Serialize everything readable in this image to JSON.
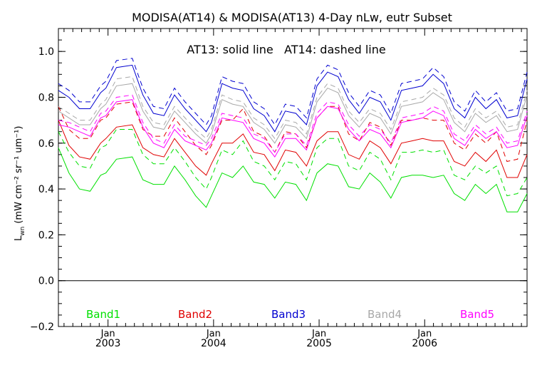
{
  "chart_data": {
    "type": "line",
    "title": "MODISA(AT14) & MODISA(AT13) 4-Day nLw, eutr Subset",
    "annotation": "AT13: solid line   AT14: dashed line",
    "ylabel_main": "L",
    "ylabel_sub": "wn",
    "ylabel_units": "(mW cm⁻² sr⁻¹ um⁻¹)",
    "ylim": [
      -0.2,
      1.1
    ],
    "xlim": [
      2002.53,
      2006.97
    ],
    "yticks": [
      "−0.2",
      "0.0",
      "0.2",
      "0.4",
      "0.6",
      "0.8",
      "1.0"
    ],
    "yticks_values": [
      -0.2,
      0.0,
      0.2,
      0.4,
      0.6,
      0.8,
      1.0
    ],
    "xticks_top": [
      "Jan",
      "Jan",
      "Jan",
      "Jan"
    ],
    "xticks_bottom": [
      "2003",
      "2004",
      "2005",
      "2006"
    ],
    "xticks_values": [
      2003.0,
      2004.0,
      2005.0,
      2006.0
    ],
    "zero_line": true,
    "grid": false,
    "legend_placement": "bottom",
    "x": [
      2002.53,
      2002.63,
      2002.73,
      2002.83,
      2002.93,
      2002.98,
      2003.08,
      2003.23,
      2003.33,
      2003.43,
      2003.53,
      2003.63,
      2003.73,
      2003.83,
      2003.93,
      2003.98,
      2004.08,
      2004.18,
      2004.28,
      2004.38,
      2004.48,
      2004.58,
      2004.68,
      2004.78,
      2004.88,
      2004.98,
      2005.08,
      2005.18,
      2005.28,
      2005.38,
      2005.48,
      2005.58,
      2005.68,
      2005.78,
      2005.88,
      2005.98,
      2006.08,
      2006.18,
      2006.28,
      2006.38,
      2006.48,
      2006.58,
      2006.68,
      2006.78,
      2006.88,
      2006.97
    ],
    "series": [
      {
        "name": "Band1",
        "color": "#00e000",
        "dash": false,
        "values": [
          0.58,
          0.47,
          0.4,
          0.39,
          0.46,
          0.47,
          0.53,
          0.54,
          0.44,
          0.42,
          0.42,
          0.5,
          0.44,
          0.37,
          0.32,
          0.37,
          0.47,
          0.45,
          0.5,
          0.43,
          0.42,
          0.36,
          0.43,
          0.42,
          0.35,
          0.47,
          0.51,
          0.5,
          0.41,
          0.4,
          0.47,
          0.43,
          0.36,
          0.45,
          0.46,
          0.46,
          0.45,
          0.46,
          0.38,
          0.35,
          0.42,
          0.38,
          0.42,
          0.3,
          0.3,
          0.38
        ]
      },
      {
        "name": "Band1 AT14",
        "color": "#00e000",
        "dash": true,
        "values": [
          0.65,
          0.56,
          0.5,
          0.49,
          0.58,
          0.59,
          0.66,
          0.66,
          0.55,
          0.51,
          0.51,
          0.58,
          0.52,
          0.45,
          0.4,
          0.45,
          0.57,
          0.55,
          0.61,
          0.52,
          0.5,
          0.44,
          0.52,
          0.51,
          0.44,
          0.58,
          0.62,
          0.62,
          0.5,
          0.48,
          0.56,
          0.53,
          0.44,
          0.56,
          0.56,
          0.57,
          0.56,
          0.57,
          0.46,
          0.44,
          0.5,
          0.47,
          0.5,
          0.37,
          0.38,
          0.45
        ]
      },
      {
        "name": "Band2",
        "color": "#e00000",
        "dash": false,
        "values": [
          0.7,
          0.59,
          0.54,
          0.53,
          0.6,
          0.62,
          0.67,
          0.68,
          0.58,
          0.55,
          0.54,
          0.62,
          0.56,
          0.5,
          0.46,
          0.51,
          0.6,
          0.6,
          0.64,
          0.56,
          0.55,
          0.48,
          0.57,
          0.56,
          0.5,
          0.61,
          0.65,
          0.65,
          0.55,
          0.53,
          0.61,
          0.58,
          0.51,
          0.6,
          0.61,
          0.62,
          0.61,
          0.61,
          0.52,
          0.5,
          0.56,
          0.52,
          0.57,
          0.45,
          0.45,
          0.55
        ]
      },
      {
        "name": "Band2 AT14",
        "color": "#e00000",
        "dash": true,
        "values": [
          0.76,
          0.66,
          0.62,
          0.62,
          0.7,
          0.71,
          0.77,
          0.78,
          0.66,
          0.63,
          0.63,
          0.71,
          0.65,
          0.59,
          0.55,
          0.59,
          0.7,
          0.7,
          0.75,
          0.65,
          0.63,
          0.56,
          0.65,
          0.64,
          0.58,
          0.71,
          0.76,
          0.76,
          0.64,
          0.61,
          0.69,
          0.67,
          0.59,
          0.7,
          0.7,
          0.71,
          0.7,
          0.7,
          0.6,
          0.57,
          0.64,
          0.6,
          0.65,
          0.52,
          0.53,
          0.7
        ]
      },
      {
        "name": "Band3",
        "color": "#0000d0",
        "dash": false,
        "values": [
          0.83,
          0.8,
          0.75,
          0.75,
          0.82,
          0.84,
          0.93,
          0.94,
          0.81,
          0.73,
          0.72,
          0.81,
          0.75,
          0.7,
          0.65,
          0.69,
          0.86,
          0.84,
          0.83,
          0.75,
          0.72,
          0.65,
          0.74,
          0.73,
          0.68,
          0.85,
          0.91,
          0.89,
          0.79,
          0.73,
          0.8,
          0.78,
          0.7,
          0.83,
          0.84,
          0.85,
          0.9,
          0.86,
          0.75,
          0.71,
          0.8,
          0.75,
          0.79,
          0.71,
          0.72,
          0.88
        ]
      },
      {
        "name": "Band3 AT14",
        "color": "#0000d0",
        "dash": true,
        "values": [
          0.86,
          0.83,
          0.78,
          0.78,
          0.85,
          0.87,
          0.96,
          0.97,
          0.84,
          0.76,
          0.75,
          0.84,
          0.78,
          0.73,
          0.68,
          0.72,
          0.89,
          0.87,
          0.86,
          0.78,
          0.75,
          0.68,
          0.77,
          0.76,
          0.71,
          0.88,
          0.94,
          0.92,
          0.82,
          0.76,
          0.83,
          0.81,
          0.73,
          0.86,
          0.87,
          0.88,
          0.93,
          0.89,
          0.78,
          0.74,
          0.83,
          0.78,
          0.82,
          0.74,
          0.75,
          0.91
        ]
      },
      {
        "name": "Band4",
        "color": "#a8a8a8",
        "dash": false,
        "values": [
          0.74,
          0.71,
          0.68,
          0.68,
          0.75,
          0.77,
          0.85,
          0.86,
          0.74,
          0.67,
          0.66,
          0.74,
          0.69,
          0.64,
          0.6,
          0.64,
          0.79,
          0.77,
          0.76,
          0.69,
          0.66,
          0.6,
          0.68,
          0.67,
          0.62,
          0.78,
          0.84,
          0.82,
          0.72,
          0.67,
          0.73,
          0.71,
          0.64,
          0.76,
          0.77,
          0.78,
          0.82,
          0.79,
          0.69,
          0.65,
          0.73,
          0.69,
          0.72,
          0.65,
          0.66,
          0.81
        ]
      },
      {
        "name": "Band4 AT14",
        "color": "#a8a8a8",
        "dash": true,
        "values": [
          0.76,
          0.73,
          0.7,
          0.7,
          0.77,
          0.79,
          0.88,
          0.89,
          0.76,
          0.69,
          0.68,
          0.76,
          0.71,
          0.66,
          0.62,
          0.66,
          0.81,
          0.79,
          0.78,
          0.71,
          0.68,
          0.62,
          0.7,
          0.69,
          0.64,
          0.8,
          0.86,
          0.84,
          0.74,
          0.69,
          0.75,
          0.73,
          0.66,
          0.78,
          0.79,
          0.8,
          0.84,
          0.81,
          0.71,
          0.67,
          0.75,
          0.71,
          0.74,
          0.67,
          0.68,
          0.83
        ]
      },
      {
        "name": "Band5",
        "color": "#ff00ff",
        "dash": false,
        "values": [
          0.68,
          0.67,
          0.65,
          0.63,
          0.71,
          0.72,
          0.78,
          0.79,
          0.67,
          0.6,
          0.58,
          0.66,
          0.61,
          0.59,
          0.57,
          0.6,
          0.71,
          0.7,
          0.69,
          0.62,
          0.6,
          0.54,
          0.62,
          0.62,
          0.57,
          0.71,
          0.76,
          0.75,
          0.66,
          0.61,
          0.66,
          0.64,
          0.58,
          0.69,
          0.7,
          0.71,
          0.74,
          0.72,
          0.62,
          0.59,
          0.66,
          0.62,
          0.65,
          0.58,
          0.59,
          0.72
        ]
      },
      {
        "name": "Band5 AT14",
        "color": "#ff00ff",
        "dash": true,
        "values": [
          0.7,
          0.69,
          0.67,
          0.65,
          0.73,
          0.74,
          0.8,
          0.81,
          0.69,
          0.62,
          0.6,
          0.68,
          0.63,
          0.61,
          0.59,
          0.62,
          0.73,
          0.72,
          0.71,
          0.64,
          0.62,
          0.56,
          0.64,
          0.64,
          0.59,
          0.73,
          0.78,
          0.77,
          0.68,
          0.63,
          0.68,
          0.66,
          0.6,
          0.71,
          0.72,
          0.73,
          0.76,
          0.74,
          0.64,
          0.61,
          0.68,
          0.64,
          0.67,
          0.6,
          0.61,
          0.74
        ]
      }
    ],
    "legend": [
      {
        "label": "Band1",
        "color": "#00e000"
      },
      {
        "label": "Band2",
        "color": "#e00000"
      },
      {
        "label": "Band3",
        "color": "#0000d0"
      },
      {
        "label": "Band4",
        "color": "#a8a8a8"
      },
      {
        "label": "Band5",
        "color": "#ff00ff"
      }
    ]
  }
}
